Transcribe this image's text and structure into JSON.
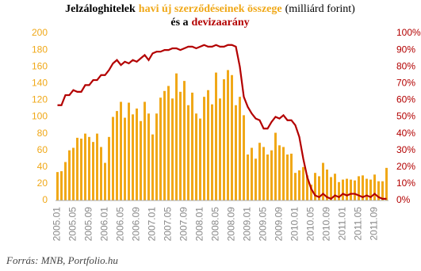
{
  "chart_data": {
    "type": "bar-line",
    "title": [
      "Jelzáloghitelek",
      "havi új szerződéseinek összege",
      "(milliárd forint)",
      "és a",
      "devizaarány"
    ],
    "source": "Forrás: MNB, Portfolio.hu",
    "categories": [
      "2005.01",
      null,
      null,
      null,
      "2005.05",
      null,
      null,
      null,
      "2005.09",
      null,
      null,
      null,
      "2006.01",
      null,
      null,
      null,
      "2006.05",
      null,
      null,
      null,
      "2006.09",
      null,
      null,
      null,
      "2007.01",
      null,
      null,
      null,
      "2007.05",
      null,
      null,
      null,
      "2007.09",
      null,
      null,
      null,
      "2008.01",
      null,
      null,
      null,
      "2008.05",
      null,
      null,
      null,
      "2008.09",
      null,
      null,
      null,
      "2009.01",
      null,
      null,
      null,
      "2009.05",
      null,
      null,
      null,
      "2009.09",
      null,
      null,
      null,
      "2010.01",
      null,
      null,
      null,
      "2010.05",
      null,
      null,
      null,
      "2010.09",
      null,
      null,
      null,
      "2011.01",
      null,
      null,
      null,
      "2011.05",
      null,
      null,
      null,
      "2011.09",
      null,
      null,
      null
    ],
    "series": [
      {
        "name": "havi új szerződések összege",
        "type": "bar",
        "color": "#f0a818",
        "axis": "y",
        "values": [
          34,
          35,
          46,
          60,
          63,
          75,
          74,
          80,
          76,
          70,
          80,
          64,
          45,
          76,
          100,
          107,
          118,
          99,
          117,
          103,
          110,
          95,
          118,
          104,
          79,
          104,
          123,
          131,
          137,
          122,
          152,
          130,
          143,
          114,
          129,
          104,
          98,
          124,
          132,
          115,
          153,
          122,
          145,
          156,
          150,
          114,
          124,
          102,
          55,
          63,
          50,
          69,
          64,
          55,
          60,
          81,
          66,
          64,
          55,
          56,
          33,
          36,
          40,
          30,
          19,
          33,
          29,
          45,
          37,
          28,
          32,
          22,
          25,
          26,
          25,
          24,
          29,
          30,
          26,
          25,
          31,
          23,
          23,
          39
        ]
      },
      {
        "name": "devizaarány",
        "type": "line",
        "color": "#b30000",
        "axis": "y2",
        "values": [
          57,
          57,
          63,
          63,
          66,
          65,
          65,
          69,
          69,
          72,
          72,
          75,
          75,
          78,
          82,
          84,
          81,
          83,
          82,
          84,
          83,
          85,
          87,
          84,
          88,
          89,
          89,
          90,
          90,
          91,
          91,
          90,
          91,
          92,
          92,
          91,
          92,
          93,
          92,
          92,
          93,
          92,
          92,
          93,
          93,
          92,
          80,
          62,
          56,
          52,
          49,
          48,
          43,
          43,
          47,
          50,
          49,
          51,
          48,
          48,
          45,
          38,
          25,
          14,
          7,
          3,
          2,
          4,
          2,
          1,
          3,
          2,
          4,
          3,
          4,
          4,
          3,
          2,
          3,
          2,
          4,
          2,
          1,
          1
        ]
      }
    ],
    "ylim": [
      0,
      200
    ],
    "yticks": [
      0,
      20,
      40,
      60,
      80,
      100,
      120,
      140,
      160,
      180,
      200
    ],
    "y2lim": [
      0,
      100
    ],
    "y2ticks": [
      {
        "value": 0,
        "label": "0%"
      },
      {
        "value": 10,
        "label": "10%"
      },
      {
        "value": 20,
        "label": "20%"
      },
      {
        "value": 30,
        "label": "30%"
      },
      {
        "value": 40,
        "label": "40%"
      },
      {
        "value": 50,
        "label": "50%"
      },
      {
        "value": 60,
        "label": "60%"
      },
      {
        "value": 70,
        "label": "70%"
      },
      {
        "value": 80,
        "label": "80%"
      },
      {
        "value": 90,
        "label": "90%"
      },
      {
        "value": 100,
        "label": "100%"
      }
    ],
    "grid": false
  }
}
